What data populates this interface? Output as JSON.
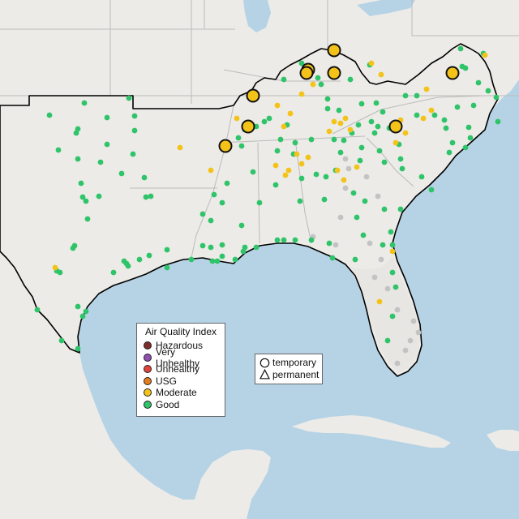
{
  "map": {
    "colors": {
      "water": "#b6d3e6",
      "land": "#ecebe7",
      "region_fill": "#e8e6e2",
      "boundary": "#bbbbbb",
      "region_outline": "#000000"
    }
  },
  "aqi_legend": {
    "title": "Air Quality Index",
    "items": [
      {
        "label": "Hazardous",
        "color": "#7e2c2c"
      },
      {
        "label": "Very Unhealthy",
        "color": "#8e4fae"
      },
      {
        "label": "Unhealthy",
        "color": "#e0443a"
      },
      {
        "label": "USG",
        "color": "#e57c22"
      },
      {
        "label": "Moderate",
        "color": "#f3c319"
      },
      {
        "label": "Good",
        "color": "#2fc46a"
      }
    ]
  },
  "type_legend": {
    "items": [
      {
        "label": "temporary",
        "shape": "circle-icon"
      },
      {
        "label": "permanent",
        "shape": "triangle-icon"
      }
    ]
  },
  "no_data_color": "#c3c3c3"
}
